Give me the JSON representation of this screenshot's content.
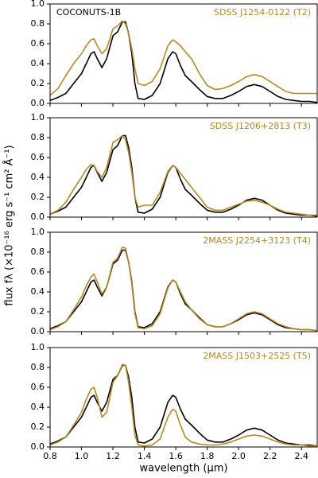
{
  "chart_data": [
    {
      "type": "line",
      "ylabel": "flux fλ (×10⁻¹⁶ erg s⁻¹ cm² Å⁻¹)",
      "xlim": [
        0.8,
        2.5
      ],
      "ylim": [
        0,
        1
      ],
      "yticks": [
        {
          "value": 0,
          "label": "0.0"
        },
        0.2,
        0.4,
        0.6,
        0.8,
        {
          "value": 1,
          "label": "1.0"
        }
      ],
      "x": [
        0.8,
        0.85,
        0.9,
        0.95,
        1.0,
        1.03,
        1.06,
        1.08,
        1.1,
        1.13,
        1.16,
        1.2,
        1.23,
        1.26,
        1.28,
        1.3,
        1.32,
        1.34,
        1.36,
        1.4,
        1.45,
        1.5,
        1.55,
        1.58,
        1.6,
        1.63,
        1.66,
        1.7,
        1.75,
        1.8,
        1.85,
        1.9,
        1.95,
        2.0,
        2.05,
        2.1,
        2.15,
        2.2,
        2.25,
        2.3,
        2.35,
        2.4,
        2.45,
        2.5
      ],
      "series": [
        {
          "name": "COCONUTS-1B",
          "color": "#000000",
          "values": [
            0.03,
            0.06,
            0.1,
            0.2,
            0.3,
            0.4,
            0.5,
            0.52,
            0.45,
            0.36,
            0.45,
            0.68,
            0.72,
            0.82,
            0.82,
            0.7,
            0.5,
            0.2,
            0.05,
            0.04,
            0.08,
            0.2,
            0.45,
            0.52,
            0.5,
            0.38,
            0.28,
            0.22,
            0.14,
            0.07,
            0.05,
            0.05,
            0.08,
            0.12,
            0.17,
            0.19,
            0.17,
            0.12,
            0.07,
            0.04,
            0.03,
            0.02,
            0.02,
            0.01
          ]
        },
        {
          "name": "SDSS J1254-0122 (T2)",
          "color": "#b8891f",
          "values": [
            0.08,
            0.15,
            0.28,
            0.4,
            0.5,
            0.58,
            0.64,
            0.65,
            0.58,
            0.5,
            0.55,
            0.75,
            0.78,
            0.83,
            0.8,
            0.7,
            0.55,
            0.35,
            0.2,
            0.18,
            0.22,
            0.35,
            0.58,
            0.64,
            0.62,
            0.58,
            0.52,
            0.45,
            0.3,
            0.18,
            0.14,
            0.15,
            0.18,
            0.22,
            0.27,
            0.29,
            0.27,
            0.22,
            0.17,
            0.12,
            0.1,
            0.1,
            0.1,
            0.1
          ]
        }
      ]
    },
    {
      "type": "line",
      "xlim": [
        0.8,
        2.5
      ],
      "ylim": [
        0,
        1
      ],
      "yticks": [
        {
          "value": 0,
          "label": "0.0"
        },
        0.2,
        0.4,
        0.6,
        0.8,
        {
          "value": 1,
          "label": "1.0"
        }
      ],
      "x": [
        0.8,
        0.85,
        0.9,
        0.95,
        1.0,
        1.03,
        1.06,
        1.08,
        1.1,
        1.13,
        1.16,
        1.2,
        1.23,
        1.26,
        1.28,
        1.3,
        1.32,
        1.34,
        1.36,
        1.4,
        1.45,
        1.5,
        1.55,
        1.58,
        1.6,
        1.63,
        1.66,
        1.7,
        1.75,
        1.8,
        1.85,
        1.9,
        1.95,
        2.0,
        2.05,
        2.1,
        2.15,
        2.2,
        2.25,
        2.3,
        2.35,
        2.4,
        2.45,
        2.5
      ],
      "series": [
        {
          "color": "#000000",
          "values": [
            0.03,
            0.06,
            0.1,
            0.2,
            0.3,
            0.4,
            0.5,
            0.52,
            0.45,
            0.36,
            0.45,
            0.68,
            0.72,
            0.82,
            0.82,
            0.7,
            0.5,
            0.2,
            0.05,
            0.04,
            0.08,
            0.2,
            0.45,
            0.52,
            0.5,
            0.38,
            0.28,
            0.22,
            0.14,
            0.07,
            0.05,
            0.05,
            0.08,
            0.12,
            0.17,
            0.19,
            0.17,
            0.12,
            0.07,
            0.04,
            0.03,
            0.02,
            0.02,
            0.01
          ]
        },
        {
          "name": "SDSS J1206+2813 (T3)",
          "color": "#b8891f",
          "values": [
            0.03,
            0.07,
            0.15,
            0.28,
            0.4,
            0.48,
            0.53,
            0.52,
            0.46,
            0.4,
            0.5,
            0.75,
            0.78,
            0.82,
            0.78,
            0.65,
            0.45,
            0.2,
            0.1,
            0.12,
            0.12,
            0.25,
            0.46,
            0.52,
            0.5,
            0.44,
            0.38,
            0.3,
            0.2,
            0.1,
            0.07,
            0.07,
            0.1,
            0.13,
            0.16,
            0.17,
            0.15,
            0.12,
            0.08,
            0.05,
            0.04,
            0.03,
            0.02,
            0.02
          ]
        }
      ]
    },
    {
      "type": "line",
      "xlim": [
        0.8,
        2.5
      ],
      "ylim": [
        0,
        1
      ],
      "yticks": [
        {
          "value": 0,
          "label": "0.0"
        },
        0.2,
        0.4,
        0.6,
        0.8,
        {
          "value": 1,
          "label": "1.0"
        }
      ],
      "x": [
        0.8,
        0.85,
        0.9,
        0.95,
        1.0,
        1.03,
        1.06,
        1.08,
        1.1,
        1.13,
        1.16,
        1.2,
        1.23,
        1.26,
        1.28,
        1.3,
        1.32,
        1.34,
        1.36,
        1.4,
        1.45,
        1.5,
        1.55,
        1.58,
        1.6,
        1.63,
        1.66,
        1.7,
        1.75,
        1.8,
        1.85,
        1.9,
        1.95,
        2.0,
        2.05,
        2.1,
        2.15,
        2.2,
        2.25,
        2.3,
        2.35,
        2.4,
        2.45,
        2.5
      ],
      "series": [
        {
          "color": "#000000",
          "values": [
            0.03,
            0.06,
            0.1,
            0.2,
            0.3,
            0.4,
            0.5,
            0.52,
            0.45,
            0.36,
            0.45,
            0.68,
            0.72,
            0.82,
            0.82,
            0.7,
            0.5,
            0.2,
            0.05,
            0.04,
            0.08,
            0.2,
            0.45,
            0.52,
            0.5,
            0.38,
            0.28,
            0.22,
            0.14,
            0.07,
            0.05,
            0.05,
            0.08,
            0.12,
            0.17,
            0.19,
            0.17,
            0.12,
            0.07,
            0.04,
            0.03,
            0.02,
            0.02,
            0.01
          ]
        },
        {
          "name": "2MASS J2254+3123 (T4)",
          "color": "#b8891f",
          "values": [
            0.02,
            0.05,
            0.1,
            0.22,
            0.35,
            0.46,
            0.55,
            0.58,
            0.5,
            0.38,
            0.45,
            0.7,
            0.74,
            0.85,
            0.84,
            0.7,
            0.48,
            0.18,
            0.04,
            0.03,
            0.06,
            0.18,
            0.44,
            0.52,
            0.5,
            0.4,
            0.3,
            0.22,
            0.13,
            0.07,
            0.05,
            0.05,
            0.08,
            0.13,
            0.18,
            0.2,
            0.18,
            0.13,
            0.08,
            0.05,
            0.03,
            0.02,
            0.02,
            0.01
          ]
        }
      ]
    },
    {
      "type": "line",
      "xlabel": "wavelength (μm)",
      "xlim": [
        0.8,
        2.5
      ],
      "ylim": [
        0,
        1
      ],
      "xticks": [
        0.8,
        {
          "value": 1,
          "label": "1.0"
        },
        1.2,
        1.4,
        1.6,
        1.8,
        {
          "value": 2,
          "label": "2.0"
        },
        2.2,
        2.4
      ],
      "yticks": [
        {
          "value": 0,
          "label": "0.0"
        },
        0.2,
        0.4,
        0.6,
        0.8,
        {
          "value": 1,
          "label": "1.0"
        }
      ],
      "x": [
        0.8,
        0.85,
        0.9,
        0.95,
        1.0,
        1.03,
        1.06,
        1.08,
        1.1,
        1.13,
        1.16,
        1.2,
        1.23,
        1.26,
        1.28,
        1.3,
        1.32,
        1.34,
        1.36,
        1.4,
        1.45,
        1.5,
        1.55,
        1.58,
        1.6,
        1.63,
        1.66,
        1.7,
        1.75,
        1.8,
        1.85,
        1.9,
        1.95,
        2.0,
        2.05,
        2.1,
        2.15,
        2.2,
        2.25,
        2.3,
        2.35,
        2.4,
        2.45,
        2.5
      ],
      "series": [
        {
          "color": "#000000",
          "values": [
            0.03,
            0.06,
            0.1,
            0.2,
            0.3,
            0.4,
            0.5,
            0.52,
            0.45,
            0.36,
            0.45,
            0.68,
            0.72,
            0.82,
            0.82,
            0.7,
            0.5,
            0.2,
            0.05,
            0.04,
            0.08,
            0.2,
            0.45,
            0.52,
            0.5,
            0.38,
            0.28,
            0.22,
            0.14,
            0.07,
            0.05,
            0.05,
            0.08,
            0.12,
            0.17,
            0.19,
            0.17,
            0.12,
            0.07,
            0.04,
            0.03,
            0.02,
            0.02,
            0.01
          ]
        },
        {
          "name": "2MASS J1503+2525 (T5)",
          "color": "#b8891f",
          "values": [
            0.02,
            0.05,
            0.1,
            0.22,
            0.35,
            0.48,
            0.58,
            0.6,
            0.5,
            0.3,
            0.35,
            0.65,
            0.72,
            0.83,
            0.82,
            0.65,
            0.4,
            0.12,
            0.02,
            0.01,
            0.02,
            0.08,
            0.3,
            0.38,
            0.36,
            0.22,
            0.1,
            0.05,
            0.03,
            0.02,
            0.02,
            0.03,
            0.05,
            0.08,
            0.11,
            0.12,
            0.11,
            0.08,
            0.05,
            0.03,
            0.02,
            0.02,
            0.01,
            0.01
          ]
        }
      ]
    }
  ]
}
